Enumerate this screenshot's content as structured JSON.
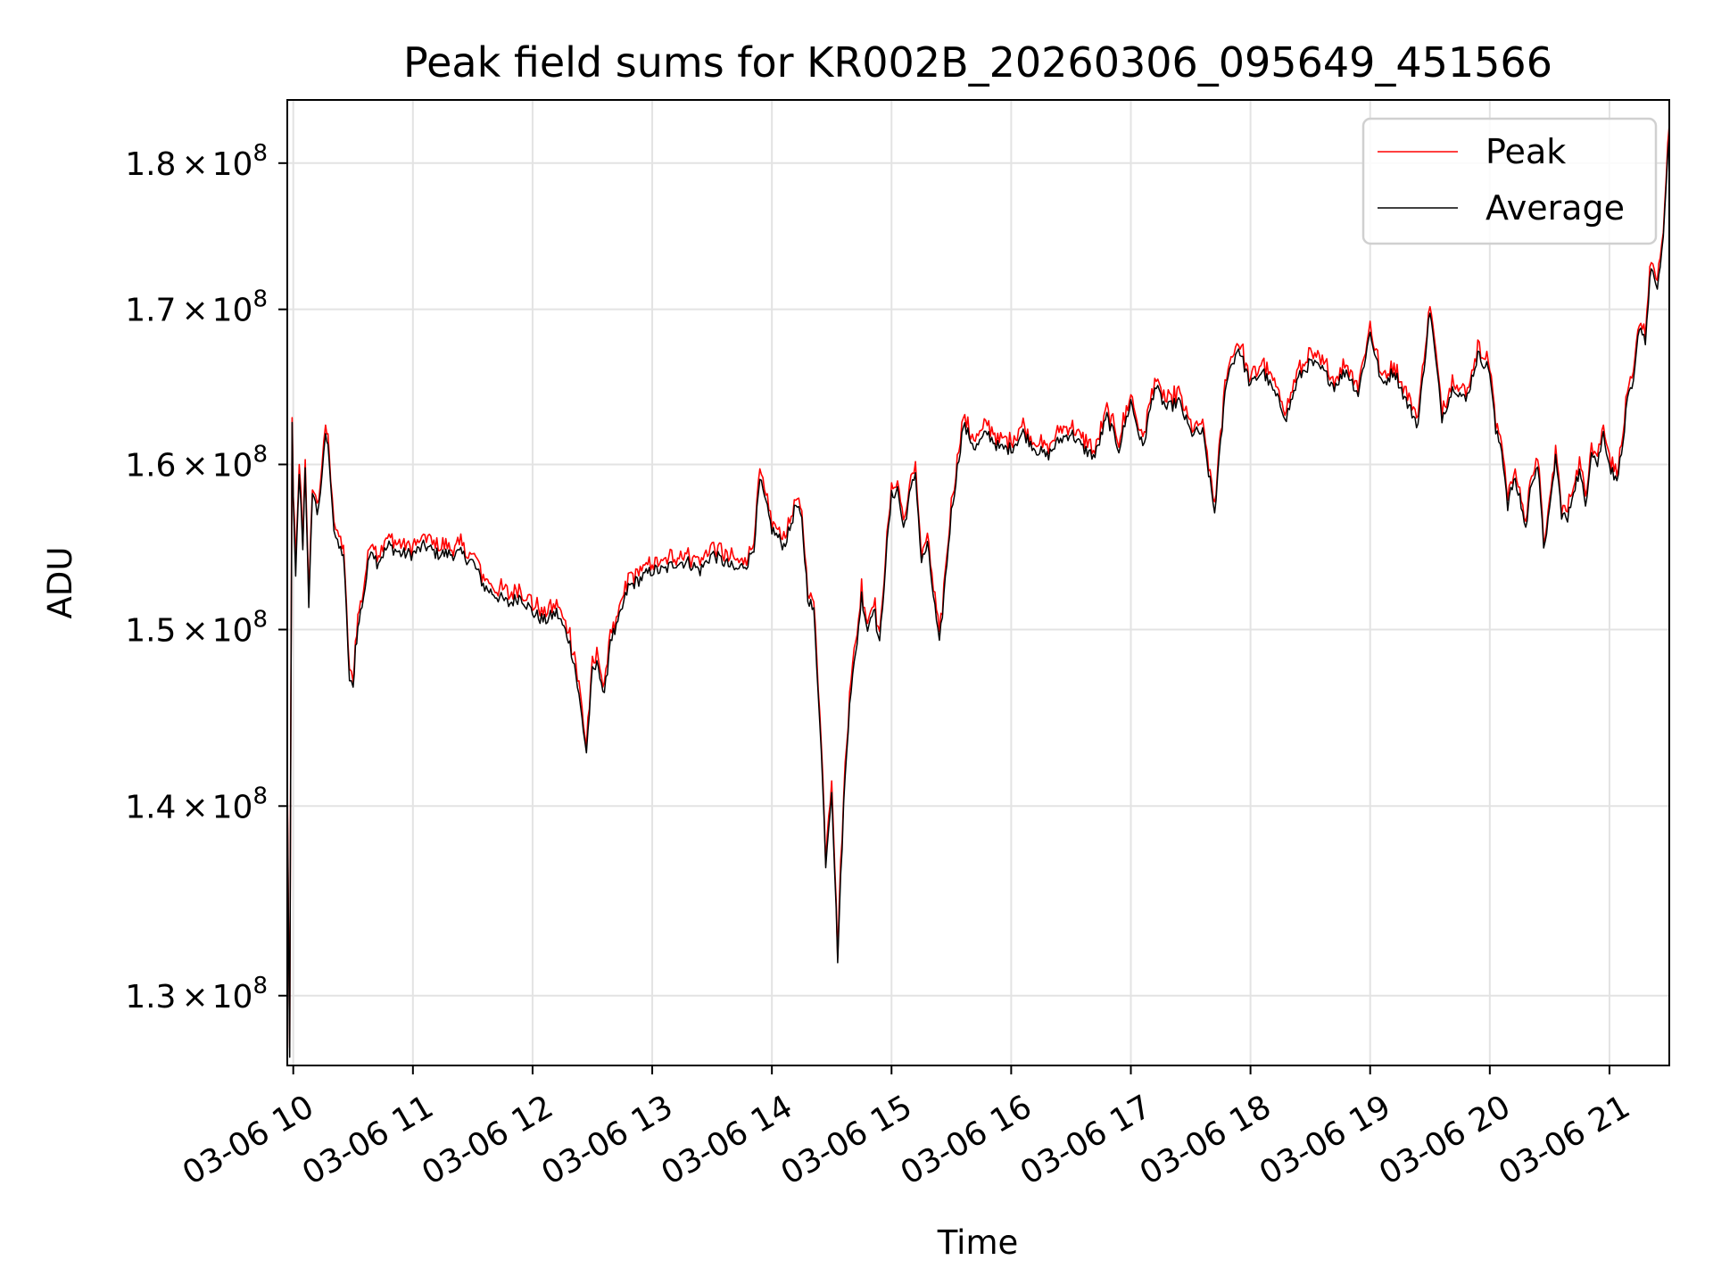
{
  "chart_data": {
    "type": "line",
    "title": "Peak field sums for KR002B_20260306_095649_451566",
    "xlabel": "Time",
    "ylabel": "ADU",
    "x_unit": "hours since 03-06 00:00",
    "xlim": [
      9.95,
      21.5
    ],
    "ylim": [
      126500000,
      184500000
    ],
    "y_scale": "log",
    "grid": true,
    "legend_position": "top-right",
    "x_ticks": [
      {
        "value": 10,
        "label": "03-06 10"
      },
      {
        "value": 11,
        "label": "03-06 11"
      },
      {
        "value": 12,
        "label": "03-06 12"
      },
      {
        "value": 13,
        "label": "03-06 13"
      },
      {
        "value": 14,
        "label": "03-06 14"
      },
      {
        "value": 15,
        "label": "03-06 15"
      },
      {
        "value": 16,
        "label": "03-06 16"
      },
      {
        "value": 17,
        "label": "03-06 17"
      },
      {
        "value": 18,
        "label": "03-06 18"
      },
      {
        "value": 19,
        "label": "03-06 19"
      },
      {
        "value": 20,
        "label": "03-06 20"
      },
      {
        "value": 21,
        "label": "03-06 21"
      }
    ],
    "y_ticks": [
      {
        "value": 130000000,
        "mantissa": "1.3",
        "base": "10",
        "exponent": "8"
      },
      {
        "value": 140000000,
        "mantissa": "1.4",
        "base": "10",
        "exponent": "8"
      },
      {
        "value": 150000000,
        "mantissa": "1.5",
        "base": "10",
        "exponent": "8"
      },
      {
        "value": 160000000,
        "mantissa": "1.6",
        "base": "10",
        "exponent": "8"
      },
      {
        "value": 170000000,
        "mantissa": "1.7",
        "base": "10",
        "exponent": "8"
      },
      {
        "value": 180000000,
        "mantissa": "1.8",
        "base": "10",
        "exponent": "8"
      }
    ],
    "series": [
      {
        "name": "Peak",
        "color": "#ff0000",
        "offset": 500000,
        "jitter": 400000,
        "x": [
          9.95,
          9.97,
          9.99,
          10.0,
          10.02,
          10.05,
          10.08,
          10.1,
          10.13,
          10.16,
          10.2,
          10.24,
          10.27,
          10.3,
          10.34,
          10.37,
          10.42,
          10.47,
          10.5,
          10.52,
          10.55,
          10.6,
          10.65,
          10.7,
          10.8,
          10.9,
          11.0,
          11.1,
          11.2,
          11.3,
          11.4,
          11.5,
          11.6,
          11.7,
          11.8,
          11.9,
          12.0,
          12.1,
          12.2,
          12.3,
          12.35,
          12.4,
          12.45,
          12.5,
          12.55,
          12.6,
          12.65,
          12.7,
          12.8,
          12.9,
          13.0,
          13.1,
          13.2,
          13.3,
          13.4,
          13.5,
          13.6,
          13.7,
          13.8,
          13.85,
          13.9,
          14.0,
          14.05,
          14.1,
          14.15,
          14.2,
          14.25,
          14.3,
          14.35,
          14.4,
          14.45,
          14.5,
          14.55,
          14.6,
          14.65,
          14.7,
          14.75,
          14.8,
          14.85,
          14.9,
          14.95,
          15.0,
          15.05,
          15.1,
          15.15,
          15.2,
          15.25,
          15.3,
          15.4,
          15.5,
          15.6,
          15.7,
          15.8,
          15.9,
          16.0,
          16.1,
          16.2,
          16.3,
          16.4,
          16.5,
          16.6,
          16.7,
          16.8,
          16.9,
          17.0,
          17.1,
          17.2,
          17.3,
          17.4,
          17.5,
          17.6,
          17.7,
          17.8,
          17.9,
          18.0,
          18.1,
          18.2,
          18.3,
          18.4,
          18.5,
          18.6,
          18.7,
          18.8,
          18.9,
          19.0,
          19.1,
          19.2,
          19.3,
          19.4,
          19.5,
          19.6,
          19.7,
          19.8,
          19.9,
          20.0,
          20.05,
          20.1,
          20.15,
          20.2,
          20.25,
          20.3,
          20.35,
          20.4,
          20.45,
          20.5,
          20.55,
          20.6,
          20.65,
          20.7,
          20.75,
          20.8,
          20.85,
          20.9,
          20.95,
          21.0,
          21.05,
          21.1,
          21.15,
          21.2,
          21.25,
          21.3,
          21.35,
          21.4,
          21.45,
          21.5
        ],
        "y": [
          141000000,
          126800000,
          162500000,
          158000000,
          153000000,
          159500000,
          155000000,
          160000000,
          151000000,
          158500000,
          157000000,
          159000000,
          162000000,
          160500000,
          156000000,
          155000000,
          154500000,
          147000000,
          146500000,
          149000000,
          150500000,
          152500000,
          155000000,
          154000000,
          155000000,
          154500000,
          154500000,
          155000000,
          154500000,
          154500000,
          154500000,
          154000000,
          152500000,
          152000000,
          151500000,
          152000000,
          151000000,
          150500000,
          151000000,
          149500000,
          148000000,
          145500000,
          143000000,
          147500000,
          148000000,
          146000000,
          149500000,
          150000000,
          152500000,
          153000000,
          153500000,
          153500000,
          154000000,
          154000000,
          153500000,
          154500000,
          154000000,
          153500000,
          154000000,
          155000000,
          159000000,
          156000000,
          155500000,
          155000000,
          156000000,
          157500000,
          156500000,
          152000000,
          151000000,
          145000000,
          137000000,
          141000000,
          132000000,
          140000000,
          146000000,
          148500000,
          152000000,
          150000000,
          151500000,
          149000000,
          154000000,
          158000000,
          158500000,
          156000000,
          158000000,
          159500000,
          154000000,
          155000000,
          149000000,
          157000000,
          162500000,
          161000000,
          162000000,
          161000000,
          161000000,
          162000000,
          161000000,
          160500000,
          161500000,
          162000000,
          161000000,
          160500000,
          163000000,
          161000000,
          164000000,
          161000000,
          165000000,
          163500000,
          164000000,
          162000000,
          162000000,
          157000000,
          165500000,
          167500000,
          165000000,
          166000000,
          164500000,
          163000000,
          165500000,
          166500000,
          166000000,
          165000000,
          166000000,
          164500000,
          168500000,
          165000000,
          166000000,
          164000000,
          162500000,
          170000000,
          163000000,
          165000000,
          164000000,
          167000000,
          166000000,
          162000000,
          161000000,
          157500000,
          159000000,
          158000000,
          156000000,
          159000000,
          160000000,
          155000000,
          157000000,
          160500000,
          157000000,
          156500000,
          158500000,
          159500000,
          157500000,
          161000000,
          160000000,
          162000000,
          160000000,
          159000000,
          160500000,
          164000000,
          165000000,
          169000000,
          168000000,
          173000000,
          171000000,
          175000000,
          182000000
        ]
      },
      {
        "name": "Average",
        "color": "#000000",
        "offset": 0,
        "jitter": 400000,
        "x": [
          9.95,
          9.97,
          9.99,
          10.0,
          10.02,
          10.05,
          10.08,
          10.1,
          10.13,
          10.16,
          10.2,
          10.24,
          10.27,
          10.3,
          10.34,
          10.37,
          10.42,
          10.47,
          10.5,
          10.52,
          10.55,
          10.6,
          10.65,
          10.7,
          10.8,
          10.9,
          11.0,
          11.1,
          11.2,
          11.3,
          11.4,
          11.5,
          11.6,
          11.7,
          11.8,
          11.9,
          12.0,
          12.1,
          12.2,
          12.3,
          12.35,
          12.4,
          12.45,
          12.5,
          12.55,
          12.6,
          12.65,
          12.7,
          12.8,
          12.9,
          13.0,
          13.1,
          13.2,
          13.3,
          13.4,
          13.5,
          13.6,
          13.7,
          13.8,
          13.85,
          13.9,
          14.0,
          14.05,
          14.1,
          14.15,
          14.2,
          14.25,
          14.3,
          14.35,
          14.4,
          14.45,
          14.5,
          14.55,
          14.6,
          14.65,
          14.7,
          14.75,
          14.8,
          14.85,
          14.9,
          14.95,
          15.0,
          15.05,
          15.1,
          15.15,
          15.2,
          15.25,
          15.3,
          15.4,
          15.5,
          15.6,
          15.7,
          15.8,
          15.9,
          16.0,
          16.1,
          16.2,
          16.3,
          16.4,
          16.5,
          16.6,
          16.7,
          16.8,
          16.9,
          17.0,
          17.1,
          17.2,
          17.3,
          17.4,
          17.5,
          17.6,
          17.7,
          17.8,
          17.9,
          18.0,
          18.1,
          18.2,
          18.3,
          18.4,
          18.5,
          18.6,
          18.7,
          18.8,
          18.9,
          19.0,
          19.1,
          19.2,
          19.3,
          19.4,
          19.5,
          19.6,
          19.7,
          19.8,
          19.9,
          20.0,
          20.05,
          20.1,
          20.15,
          20.2,
          20.25,
          20.3,
          20.35,
          20.4,
          20.45,
          20.5,
          20.55,
          20.6,
          20.65,
          20.7,
          20.75,
          20.8,
          20.85,
          20.9,
          20.95,
          21.0,
          21.05,
          21.1,
          21.15,
          21.2,
          21.25,
          21.3,
          21.35,
          21.4,
          21.45,
          21.5
        ],
        "y": [
          141000000,
          126800000,
          162500000,
          158000000,
          153000000,
          159500000,
          155000000,
          160000000,
          151000000,
          158500000,
          157000000,
          159000000,
          162000000,
          160500000,
          156000000,
          155000000,
          154500000,
          147000000,
          146500000,
          149000000,
          150500000,
          152500000,
          155000000,
          154000000,
          155000000,
          154500000,
          154500000,
          155000000,
          154500000,
          154500000,
          154500000,
          154000000,
          152500000,
          152000000,
          151500000,
          152000000,
          151000000,
          150500000,
          151000000,
          149500000,
          148000000,
          145500000,
          143000000,
          147500000,
          148000000,
          146000000,
          149500000,
          150000000,
          152500000,
          153000000,
          153500000,
          153500000,
          154000000,
          154000000,
          153500000,
          154500000,
          154000000,
          153500000,
          154000000,
          155000000,
          159000000,
          156000000,
          155500000,
          155000000,
          156000000,
          157500000,
          156500000,
          152000000,
          151000000,
          145000000,
          137000000,
          141000000,
          132000000,
          140000000,
          146000000,
          148500000,
          152000000,
          150000000,
          151500000,
          149000000,
          154000000,
          158000000,
          158500000,
          156000000,
          158000000,
          159500000,
          154000000,
          155000000,
          149000000,
          157000000,
          162500000,
          161000000,
          162000000,
          161000000,
          161000000,
          162000000,
          161000000,
          160500000,
          161500000,
          162000000,
          161000000,
          160500000,
          163000000,
          161000000,
          164000000,
          161000000,
          165000000,
          163500000,
          164000000,
          162000000,
          162000000,
          157000000,
          165500000,
          167500000,
          165000000,
          166000000,
          164500000,
          163000000,
          165500000,
          166500000,
          166000000,
          165000000,
          166000000,
          164500000,
          168500000,
          165000000,
          166000000,
          164000000,
          162500000,
          170000000,
          163000000,
          165000000,
          164000000,
          167000000,
          166000000,
          162000000,
          161000000,
          157500000,
          159000000,
          158000000,
          156000000,
          159000000,
          160000000,
          155000000,
          157000000,
          160500000,
          157000000,
          156500000,
          158500000,
          159500000,
          157500000,
          161000000,
          160000000,
          162000000,
          160000000,
          159000000,
          160500000,
          164000000,
          165000000,
          169000000,
          168000000,
          173000000,
          171000000,
          175000000,
          182000000
        ]
      }
    ]
  }
}
